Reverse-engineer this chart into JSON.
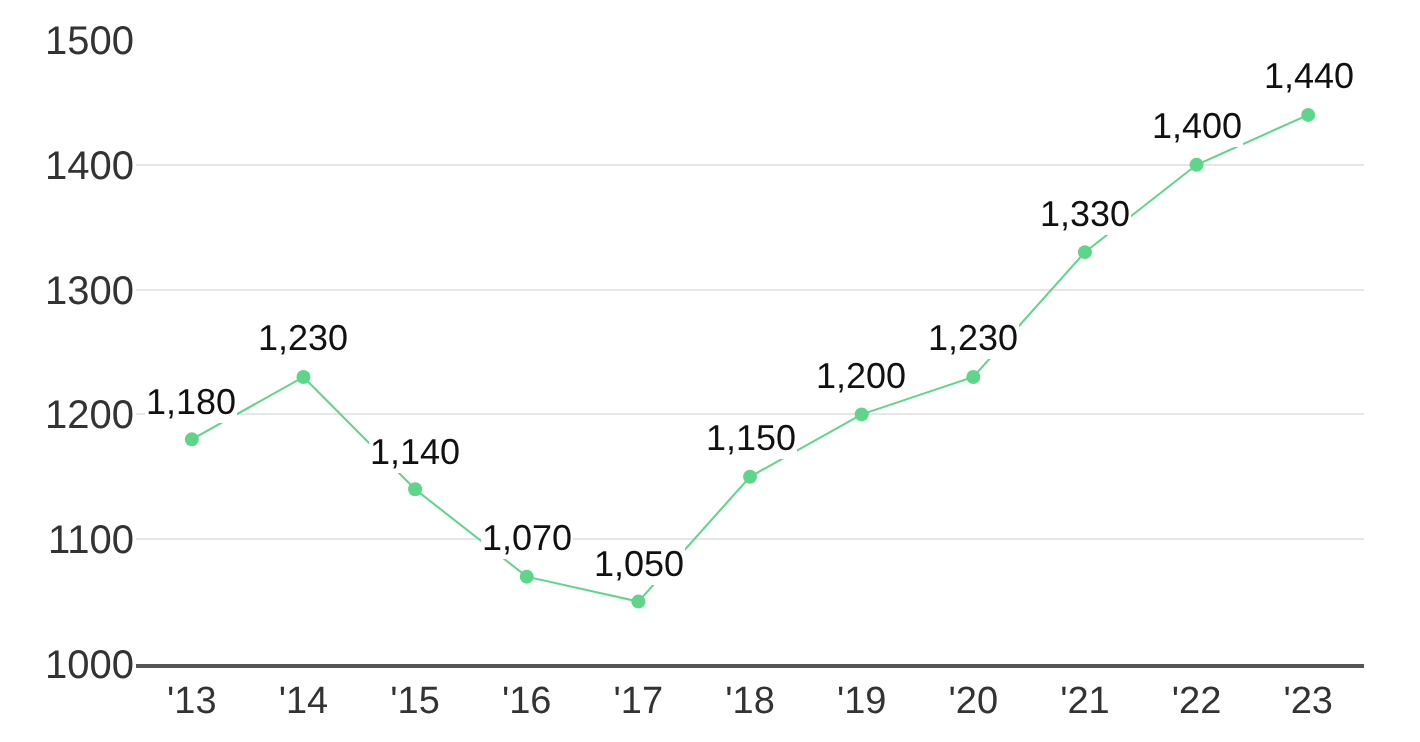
{
  "chart_data": {
    "type": "line",
    "categories": [
      "'13",
      "'14",
      "'15",
      "'16",
      "'17",
      "'18",
      "'19",
      "'20",
      "'21",
      "'22",
      "'23"
    ],
    "series": [
      {
        "color": "#5ed68a",
        "values": [
          1180,
          1230,
          1140,
          1070,
          1050,
          1150,
          1200,
          1230,
          1330,
          1400,
          1440
        ]
      }
    ],
    "value_labels": [
      "1,180",
      "1,230",
      "1,140",
      "1,070",
      "1,050",
      "1,150",
      "1,200",
      "1,230",
      "1,330",
      "1,400",
      "1,440"
    ],
    "ylim": [
      1000,
      1500
    ],
    "yticks": [
      1000,
      1100,
      1200,
      1300,
      1400,
      1500
    ],
    "grid": "y",
    "marker": "circle",
    "line_style": "solid"
  }
}
